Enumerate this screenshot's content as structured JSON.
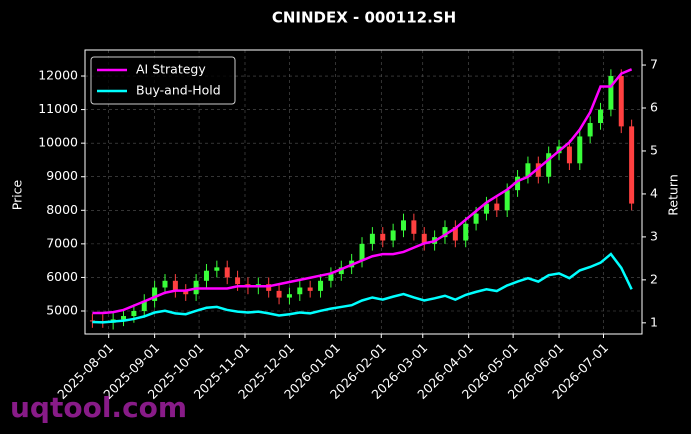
{
  "chart_data": {
    "type": "candlestick",
    "title": "CNINDEX - 000112.SH",
    "y_label": "Price",
    "y2_label": "Return",
    "watermark": "uqtool.com",
    "grid": true,
    "legend": "upper left",
    "up_color": "#39ff3a",
    "down_color": "#ff4040",
    "x": [
      "2025-07-21",
      "2025-07-28",
      "2025-08-04",
      "2025-08-11",
      "2025-08-18",
      "2025-08-25",
      "2025-09-01",
      "2025-09-08",
      "2025-09-15",
      "2025-09-22",
      "2025-09-29",
      "2025-10-06",
      "2025-10-13",
      "2025-10-20",
      "2025-10-27",
      "2025-11-03",
      "2025-11-10",
      "2025-11-17",
      "2025-11-24",
      "2025-12-01",
      "2025-12-08",
      "2025-12-15",
      "2025-12-22",
      "2025-12-29",
      "2026-01-05",
      "2026-01-12",
      "2026-01-19",
      "2026-01-26",
      "2026-02-02",
      "2026-02-09",
      "2026-02-16",
      "2026-02-23",
      "2026-03-02",
      "2026-03-09",
      "2026-03-16",
      "2026-03-23",
      "2026-03-30",
      "2026-04-06",
      "2026-04-13",
      "2026-04-20",
      "2026-04-27",
      "2026-05-04",
      "2026-05-11",
      "2026-05-18",
      "2026-05-25",
      "2026-06-01",
      "2026-06-08",
      "2026-06-15",
      "2026-06-22",
      "2026-06-29",
      "2026-07-06",
      "2026-07-13",
      "2026-07-20"
    ],
    "open": [
      4720,
      4700,
      4650,
      4750,
      4850,
      5000,
      5300,
      5700,
      5900,
      5600,
      5500,
      5900,
      6200,
      6300,
      6000,
      5800,
      5700,
      5800,
      5600,
      5400,
      5500,
      5700,
      5600,
      5900,
      6100,
      6300,
      6500,
      7000,
      7300,
      7100,
      7400,
      7700,
      7300,
      7000,
      7200,
      7500,
      7100,
      7600,
      7900,
      8200,
      8000,
      8600,
      9000,
      9400,
      9000,
      9700,
      9900,
      9400,
      10200,
      10600,
      11000,
      12000,
      10500
    ],
    "high": [
      4920,
      4900,
      4950,
      5050,
      5200,
      5500,
      5900,
      6100,
      6100,
      5800,
      6100,
      6400,
      6500,
      6500,
      6200,
      6000,
      6000,
      6000,
      5800,
      5700,
      5900,
      5900,
      6100,
      6300,
      6500,
      6700,
      7200,
      7500,
      7500,
      7600,
      7900,
      7900,
      7500,
      7400,
      7700,
      7700,
      7800,
      8100,
      8400,
      8400,
      8800,
      9200,
      9600,
      9600,
      9900,
      10100,
      10100,
      10400,
      10800,
      11200,
      12200,
      12200,
      10700
    ],
    "low": [
      4500,
      4500,
      4450,
      4550,
      4650,
      4800,
      5100,
      5500,
      5400,
      5300,
      5300,
      5700,
      6000,
      5800,
      5600,
      5500,
      5500,
      5400,
      5200,
      5200,
      5300,
      5400,
      5400,
      5700,
      5900,
      6100,
      6300,
      6800,
      6900,
      6900,
      7200,
      7100,
      6800,
      6800,
      7000,
      6900,
      6900,
      7400,
      7700,
      7800,
      7800,
      8400,
      8800,
      8800,
      8800,
      9500,
      9200,
      9200,
      10000,
      10400,
      10800,
      10300,
      8000
    ],
    "close": [
      4700,
      4650,
      4750,
      4850,
      5000,
      5300,
      5700,
      5900,
      5600,
      5500,
      5900,
      6200,
      6300,
      6000,
      5800,
      5700,
      5800,
      5600,
      5400,
      5500,
      5700,
      5600,
      5900,
      6100,
      6300,
      6500,
      7000,
      7300,
      7100,
      7400,
      7700,
      7300,
      7000,
      7200,
      7500,
      7100,
      7600,
      7900,
      8200,
      8000,
      8600,
      9000,
      9400,
      9000,
      9700,
      9900,
      9400,
      10200,
      10600,
      11000,
      12000,
      10500,
      8200
    ],
    "series": [
      {
        "name": "AI Strategy",
        "color": "#ff00ff",
        "axis": "y2",
        "values": [
          1.23,
          1.23,
          1.25,
          1.3,
          1.4,
          1.5,
          1.6,
          1.7,
          1.75,
          1.75,
          1.8,
          1.8,
          1.8,
          1.8,
          1.85,
          1.85,
          1.85,
          1.85,
          1.9,
          1.95,
          2.0,
          2.05,
          2.1,
          2.15,
          2.25,
          2.35,
          2.45,
          2.55,
          2.6,
          2.6,
          2.65,
          2.75,
          2.85,
          2.9,
          3.05,
          3.2,
          3.4,
          3.6,
          3.8,
          3.95,
          4.1,
          4.3,
          4.4,
          4.6,
          4.8,
          5.0,
          5.2,
          5.5,
          5.9,
          6.5,
          6.5,
          6.8,
          6.9
        ]
      },
      {
        "name": "Buy-and-Hold",
        "color": "#00ffff",
        "axis": "y2",
        "values": [
          1.02,
          1.01,
          1.03,
          1.05,
          1.09,
          1.15,
          1.24,
          1.28,
          1.22,
          1.2,
          1.28,
          1.35,
          1.37,
          1.3,
          1.26,
          1.24,
          1.26,
          1.22,
          1.17,
          1.2,
          1.24,
          1.22,
          1.28,
          1.33,
          1.37,
          1.41,
          1.52,
          1.59,
          1.54,
          1.61,
          1.67,
          1.59,
          1.52,
          1.57,
          1.63,
          1.54,
          1.65,
          1.72,
          1.78,
          1.74,
          1.87,
          1.96,
          2.04,
          1.96,
          2.11,
          2.15,
          2.04,
          2.22,
          2.3,
          2.4,
          2.6,
          2.28,
          1.78
        ]
      }
    ],
    "xlim": [
      "2025-07-16",
      "2026-07-27"
    ],
    "xticks": [
      "2025-08-01",
      "2025-09-01",
      "2025-10-01",
      "2025-11-01",
      "2025-12-01",
      "2026-01-01",
      "2026-02-01",
      "2026-03-01",
      "2026-04-01",
      "2026-05-01",
      "2026-06-01",
      "2026-07-01"
    ],
    "ylim": [
      4315,
      12775
    ],
    "yticks": [
      5000,
      6000,
      7000,
      8000,
      9000,
      10000,
      11000,
      12000
    ],
    "y2lim": [
      0.74,
      7.35
    ],
    "y2ticks": [
      1,
      2,
      3,
      4,
      5,
      6,
      7
    ]
  }
}
